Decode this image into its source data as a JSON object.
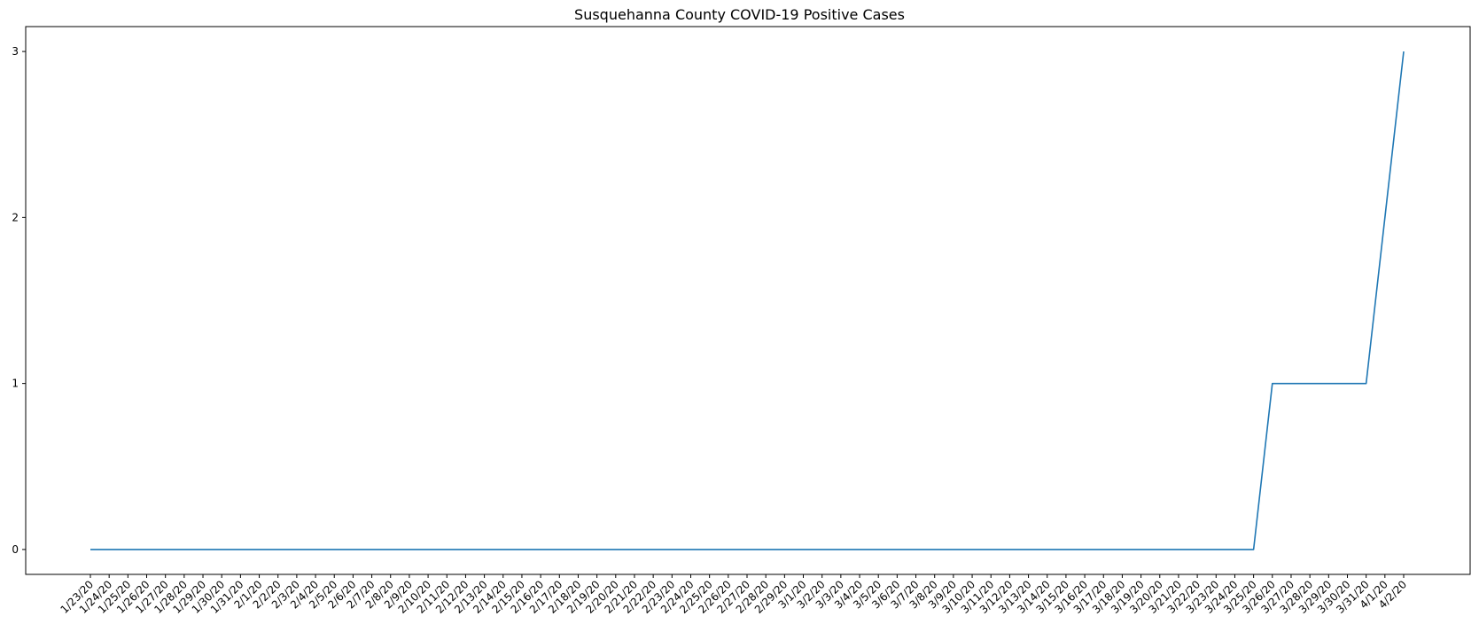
{
  "chart_data": {
    "type": "line",
    "title": "Susquehanna County COVID-19 Positive Cases",
    "xlabel": "",
    "ylabel": "",
    "categories": [
      "1/23/20",
      "1/24/20",
      "1/25/20",
      "1/26/20",
      "1/27/20",
      "1/28/20",
      "1/29/20",
      "1/30/20",
      "1/31/20",
      "2/1/20",
      "2/2/20",
      "2/3/20",
      "2/4/20",
      "2/5/20",
      "2/6/20",
      "2/7/20",
      "2/8/20",
      "2/9/20",
      "2/10/20",
      "2/11/20",
      "2/12/20",
      "2/13/20",
      "2/14/20",
      "2/15/20",
      "2/16/20",
      "2/17/20",
      "2/18/20",
      "2/19/20",
      "2/20/20",
      "2/21/20",
      "2/22/20",
      "2/23/20",
      "2/24/20",
      "2/25/20",
      "2/26/20",
      "2/27/20",
      "2/28/20",
      "2/29/20",
      "3/1/20",
      "3/2/20",
      "3/3/20",
      "3/4/20",
      "3/5/20",
      "3/6/20",
      "3/7/20",
      "3/8/20",
      "3/9/20",
      "3/10/20",
      "3/11/20",
      "3/12/20",
      "3/13/20",
      "3/14/20",
      "3/15/20",
      "3/16/20",
      "3/17/20",
      "3/18/20",
      "3/19/20",
      "3/20/20",
      "3/21/20",
      "3/22/20",
      "3/23/20",
      "3/24/20",
      "3/25/20",
      "3/26/20",
      "3/27/20",
      "3/28/20",
      "3/29/20",
      "3/30/20",
      "3/31/20",
      "4/1/20",
      "4/2/20"
    ],
    "series": [
      {
        "values": [
          0,
          0,
          0,
          0,
          0,
          0,
          0,
          0,
          0,
          0,
          0,
          0,
          0,
          0,
          0,
          0,
          0,
          0,
          0,
          0,
          0,
          0,
          0,
          0,
          0,
          0,
          0,
          0,
          0,
          0,
          0,
          0,
          0,
          0,
          0,
          0,
          0,
          0,
          0,
          0,
          0,
          0,
          0,
          0,
          0,
          0,
          0,
          0,
          0,
          0,
          0,
          0,
          0,
          0,
          0,
          0,
          0,
          0,
          0,
          0,
          0,
          0,
          0,
          1,
          1,
          1,
          1,
          1,
          1,
          2,
          3
        ],
        "color": "#1f77b4"
      }
    ],
    "yticks": [
      0,
      1,
      2,
      3
    ],
    "ylim": [
      -0.15,
      3.15
    ],
    "grid": false,
    "legend": "none"
  }
}
